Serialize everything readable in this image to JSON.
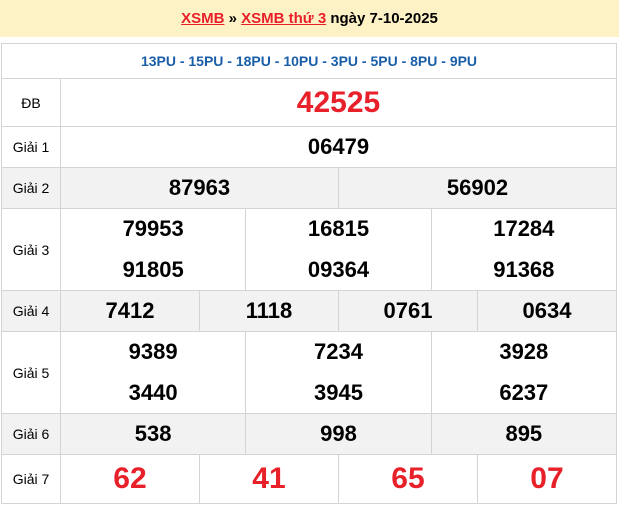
{
  "header": {
    "link1": "XSMB",
    "sep": " » ",
    "link2": "XSMB thứ 3",
    "rest": " ngày 7-10-2025"
  },
  "codes": "13PU - 15PU - 18PU - 10PU - 3PU - 5PU - 8PU - 9PU",
  "labels": {
    "db": "ĐB",
    "g1": "Giải 1",
    "g2": "Giải 2",
    "g3": "Giải 3",
    "g4": "Giải 4",
    "g5": "Giải 5",
    "g6": "Giải 6",
    "g7": "Giải 7"
  },
  "results": {
    "db": "42525",
    "g1": "06479",
    "g2": [
      "87963",
      "56902"
    ],
    "g3": [
      "79953",
      "16815",
      "17284",
      "91805",
      "09364",
      "91368"
    ],
    "g4": [
      "7412",
      "1118",
      "0761",
      "0634"
    ],
    "g5": [
      "9389",
      "7234",
      "3928",
      "3440",
      "3945",
      "6237"
    ],
    "g6": [
      "538",
      "998",
      "895"
    ],
    "g7": [
      "62",
      "41",
      "65",
      "07"
    ]
  },
  "colors": {
    "accent": "#e8202a",
    "code": "#1a5ea8",
    "header_bg": "#fdf2c6"
  }
}
